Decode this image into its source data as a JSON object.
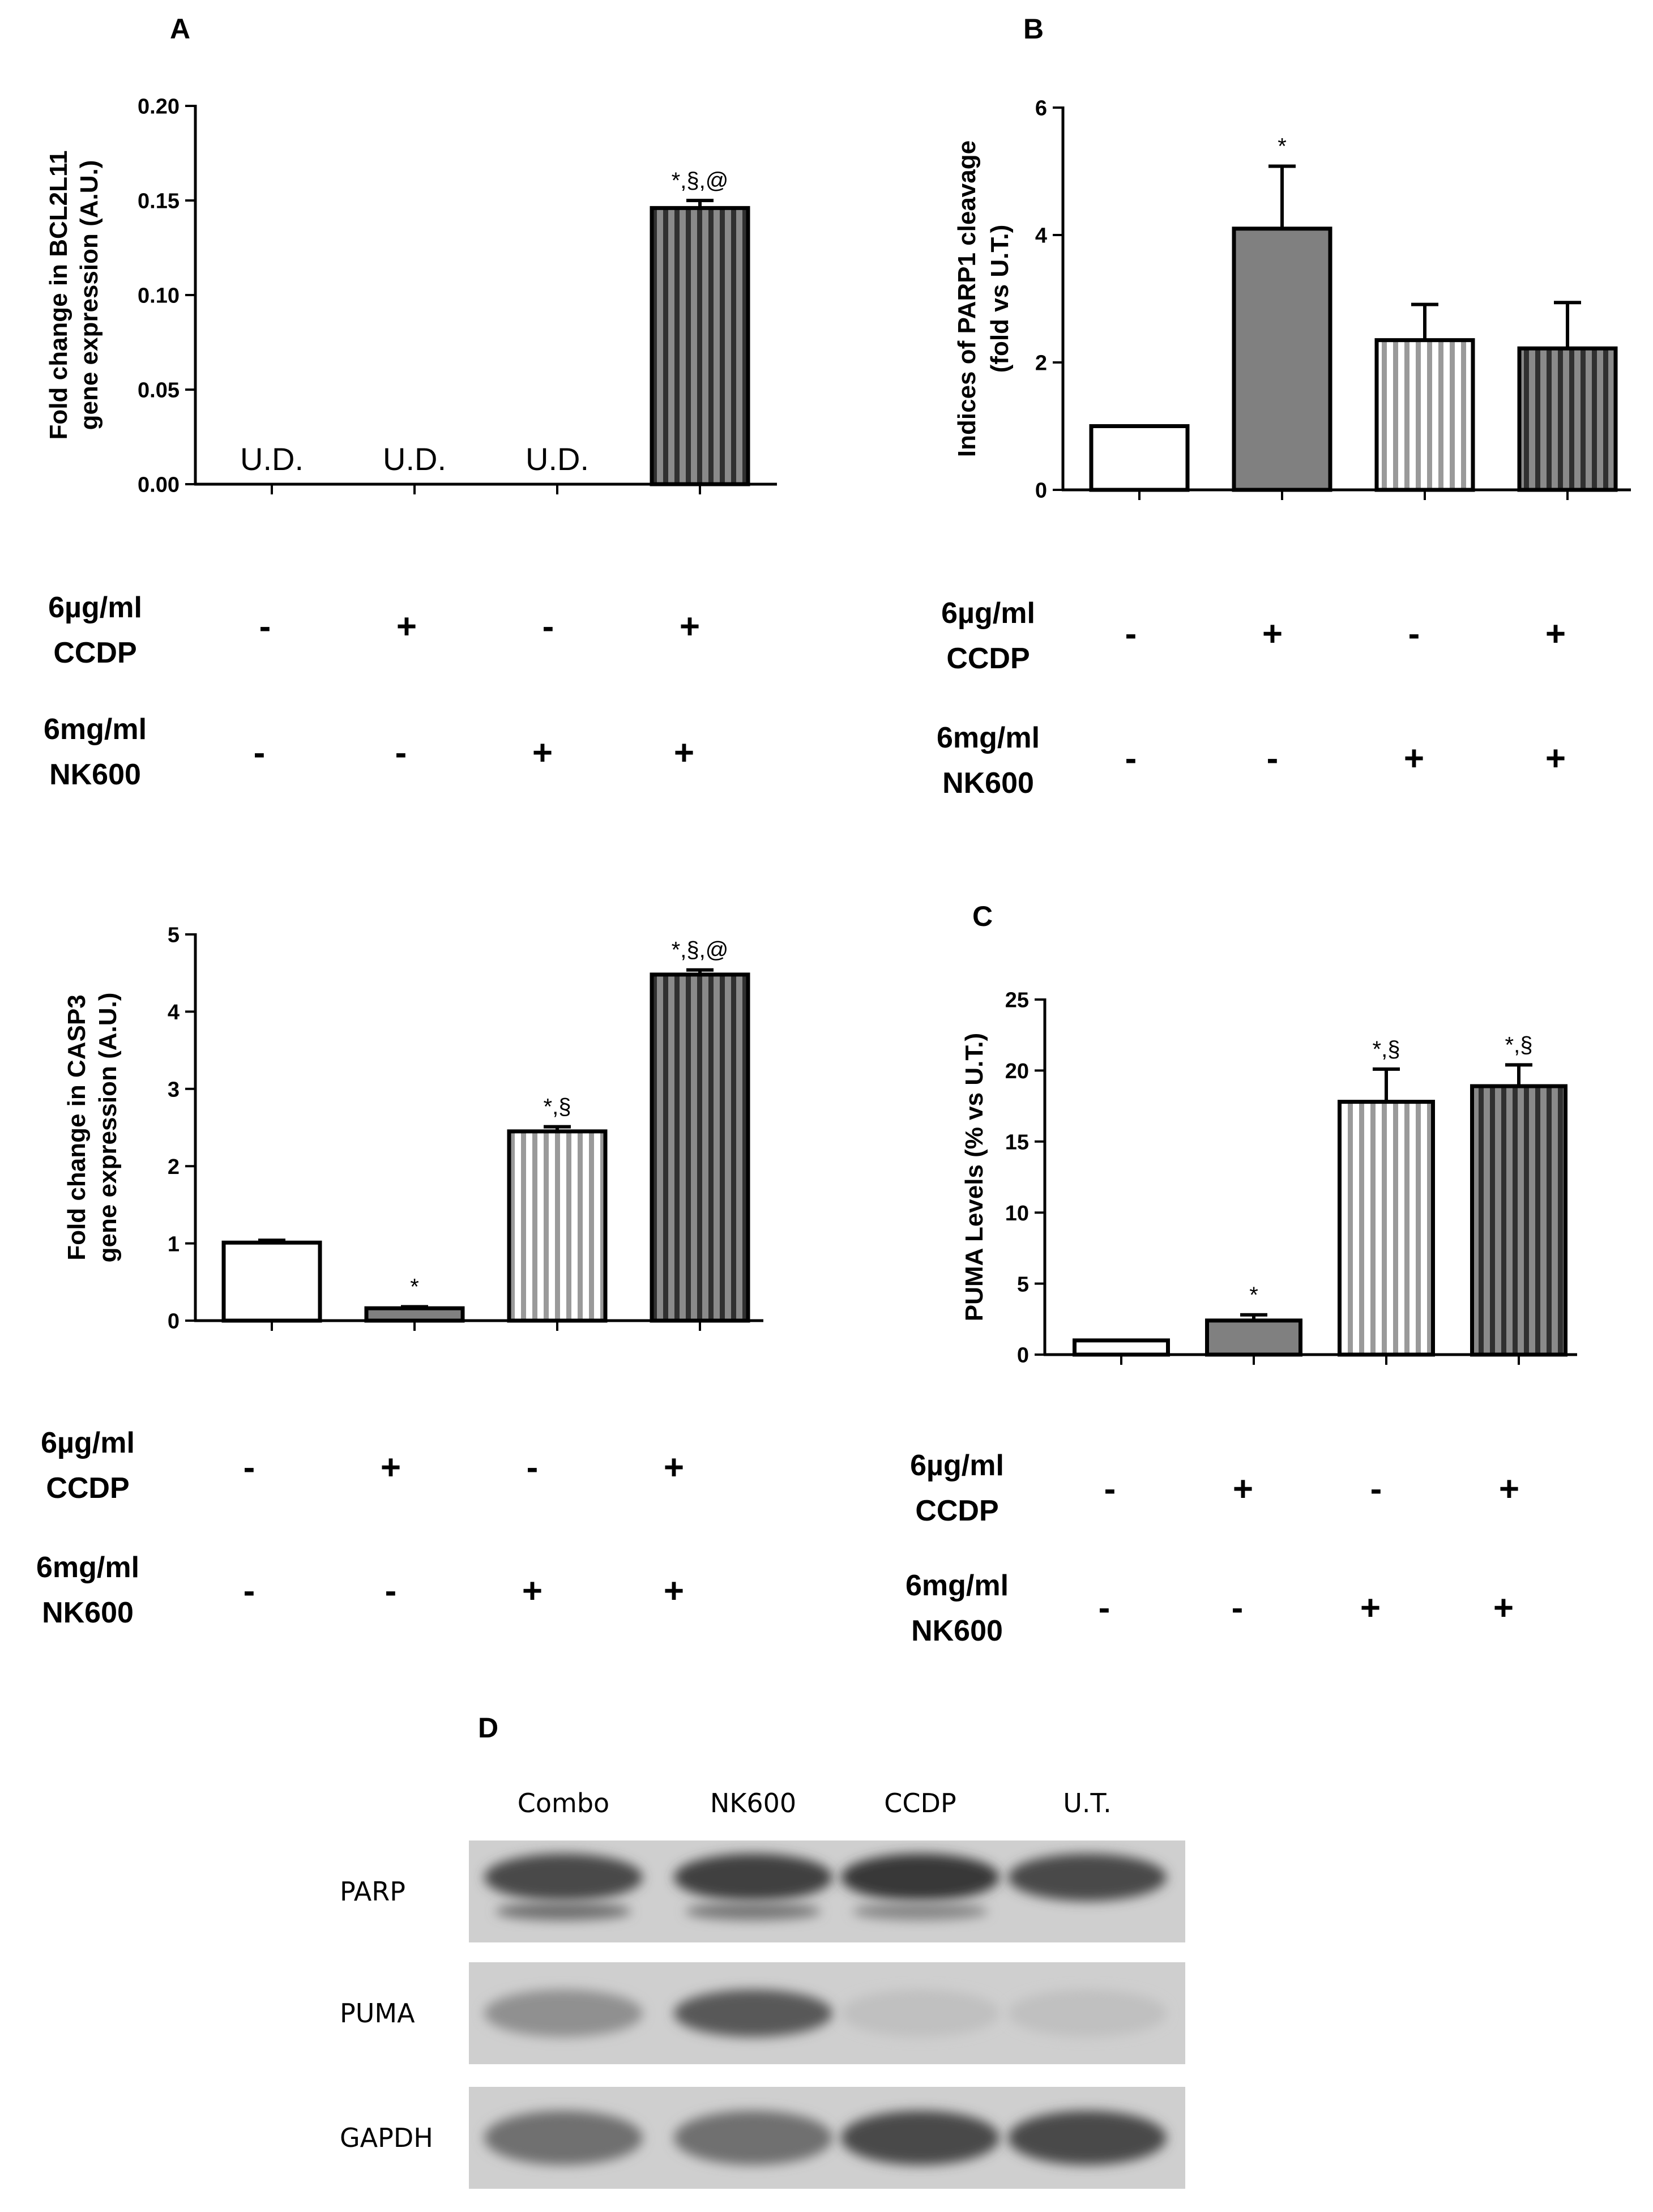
{
  "colors": {
    "bar_gray": "#808080",
    "stripe_light": "#9a9a9a",
    "axis": "#000000",
    "blot_bg": "#cfcfcf"
  },
  "chart_data": [
    {
      "id": "A",
      "panel_label": "A",
      "type": "bar",
      "title": "",
      "ylabel_lines": [
        "Fold change in BCL2L11",
        "gene expression (A.U.)"
      ],
      "ylim": [
        0,
        0.2
      ],
      "yticks": [
        0.0,
        0.05,
        0.1,
        0.15,
        0.2
      ],
      "ytick_labels": [
        "0.00",
        "0.05",
        "0.10",
        "0.15",
        "0.20"
      ],
      "categories": [
        "U.T.",
        "CCDP",
        "NK600",
        "Combo"
      ],
      "styles": [
        "open",
        "solid",
        "light-stripe",
        "dark-stripe"
      ],
      "values": [
        null,
        null,
        null,
        0.146
      ],
      "errors": [
        null,
        null,
        null,
        0.004
      ],
      "bar_text": [
        "U.D.",
        "U.D.",
        "U.D.",
        ""
      ],
      "significance": [
        "",
        "",
        "",
        "*,§,@"
      ],
      "treatments": [
        {
          "name_lines": [
            "6µg/ml",
            "CCDP"
          ],
          "signs": [
            "-",
            "+",
            "-",
            "+"
          ]
        },
        {
          "name_lines": [
            "6mg/ml",
            "NK600"
          ],
          "signs": [
            "-",
            "-",
            "+",
            "+"
          ]
        }
      ]
    },
    {
      "id": "B",
      "panel_label": "B",
      "type": "bar",
      "title": "",
      "ylabel_lines": [
        "Indices of PARP1 cleavage",
        "(fold vs U.T.)"
      ],
      "ylim": [
        0,
        6
      ],
      "yticks": [
        0,
        2,
        4,
        6
      ],
      "ytick_labels": [
        "0",
        "2",
        "4",
        "6"
      ],
      "categories": [
        "U.T.",
        "CCDP",
        "NK600",
        "Combo"
      ],
      "styles": [
        "open",
        "solid",
        "light-stripe",
        "dark-stripe"
      ],
      "values": [
        1.0,
        4.1,
        2.35,
        2.22
      ],
      "errors": [
        0,
        0.98,
        0.56,
        0.72
      ],
      "bar_text": [
        "",
        "",
        "",
        ""
      ],
      "significance": [
        "",
        "*",
        "",
        ""
      ],
      "treatments": [
        {
          "name_lines": [
            "6µg/ml",
            "CCDP"
          ],
          "signs": [
            "-",
            "+",
            "-",
            "+"
          ]
        },
        {
          "name_lines": [
            "6mg/ml",
            "NK600"
          ],
          "signs": [
            "-",
            "-",
            "+",
            "+"
          ]
        }
      ]
    },
    {
      "id": "CASP3",
      "panel_label": "",
      "type": "bar",
      "title": "",
      "ylabel_lines": [
        "Fold change in CASP3",
        "gene expression (A.U.)"
      ],
      "ylim": [
        0,
        5
      ],
      "yticks": [
        0,
        1,
        2,
        3,
        4,
        5
      ],
      "ytick_labels": [
        "0",
        "1",
        "2",
        "3",
        "4",
        "5"
      ],
      "categories": [
        "U.T.",
        "CCDP",
        "NK600",
        "Combo"
      ],
      "styles": [
        "open",
        "solid",
        "light-stripe",
        "dark-stripe"
      ],
      "values": [
        1.01,
        0.16,
        2.45,
        4.48
      ],
      "errors": [
        0.03,
        0.02,
        0.06,
        0.06
      ],
      "bar_text": [
        "",
        "",
        "",
        ""
      ],
      "significance": [
        "",
        "*",
        "*,§",
        "*,§,@"
      ],
      "treatments": [
        {
          "name_lines": [
            "6µg/ml",
            "CCDP"
          ],
          "signs": [
            "-",
            "+",
            "-",
            "+"
          ]
        },
        {
          "name_lines": [
            "6mg/ml",
            "NK600"
          ],
          "signs": [
            "-",
            "-",
            "+",
            "+"
          ]
        }
      ]
    },
    {
      "id": "C",
      "panel_label": "C",
      "type": "bar",
      "title": "",
      "ylabel_lines": [
        "PUMA Levels (% vs U.T.)"
      ],
      "ylim": [
        0,
        25
      ],
      "yticks": [
        0,
        5,
        10,
        15,
        20,
        25
      ],
      "ytick_labels": [
        "0",
        "5",
        "10",
        "15",
        "20",
        "25"
      ],
      "categories": [
        "U.T.",
        "CCDP",
        "NK600",
        "Combo"
      ],
      "styles": [
        "open",
        "solid",
        "light-stripe",
        "dark-stripe"
      ],
      "values": [
        1.0,
        2.4,
        17.8,
        18.9
      ],
      "errors": [
        0,
        0.4,
        2.3,
        1.5
      ],
      "bar_text": [
        "",
        "",
        "",
        ""
      ],
      "significance": [
        "",
        "*",
        "*,§",
        "*,§"
      ],
      "treatments": [
        {
          "name_lines": [
            "6µg/ml",
            "CCDP"
          ],
          "signs": [
            "-",
            "+",
            "-",
            "+"
          ]
        },
        {
          "name_lines": [
            "6mg/ml",
            "NK600"
          ],
          "signs": [
            "-",
            "-",
            "+",
            "+"
          ]
        }
      ]
    }
  ],
  "blot": {
    "panel_label": "D",
    "lanes": [
      "Combo",
      "NK600",
      "CCDP",
      "U.T."
    ],
    "rows": [
      {
        "label": "PARP",
        "intensity": [
          0.8,
          0.85,
          0.9,
          0.8
        ],
        "cleaved": [
          0.55,
          0.5,
          0.4,
          0.0
        ]
      },
      {
        "label": "PUMA",
        "intensity": [
          0.35,
          0.7,
          0.05,
          0.05
        ],
        "cleaved": [
          0,
          0,
          0,
          0
        ]
      },
      {
        "label": "GAPDH",
        "intensity": [
          0.55,
          0.55,
          0.8,
          0.8
        ],
        "cleaved": [
          0,
          0,
          0,
          0
        ]
      }
    ]
  }
}
